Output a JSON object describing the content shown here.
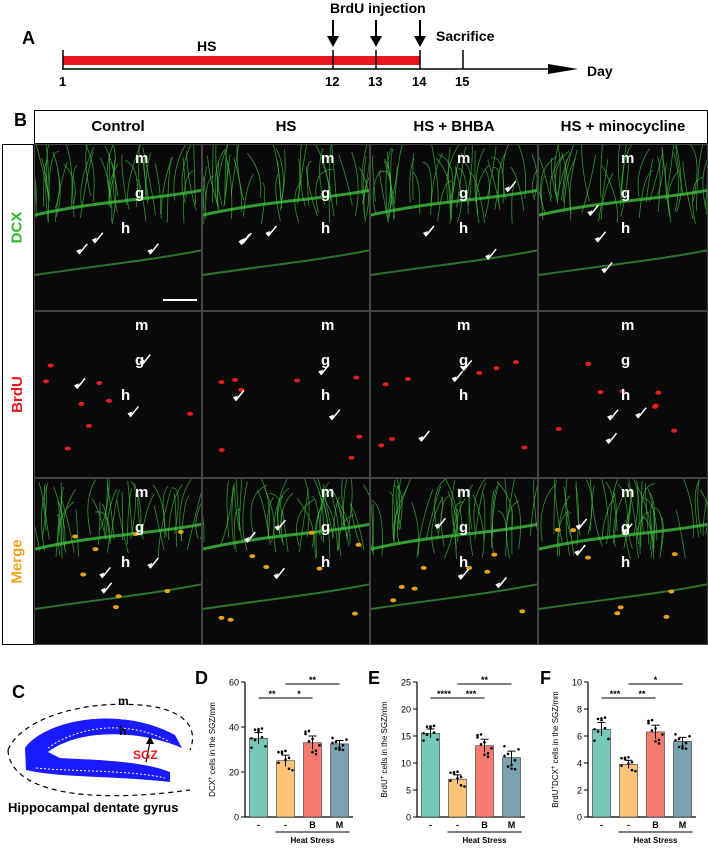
{
  "panel_labels": {
    "a": "A",
    "b": "B",
    "c": "C",
    "d": "D",
    "e": "E",
    "f": "F"
  },
  "timeline": {
    "injection_label": "BrdU injection",
    "hs_label": "HS",
    "sacrifice_label": "Sacrifice",
    "day_label": "Day",
    "ticks": [
      "1",
      "12",
      "13",
      "14",
      "15"
    ],
    "hs_bar_color": "#e8161c"
  },
  "columns": [
    "Control",
    "HS",
    "HS + BHBA",
    "HS + minocycline"
  ],
  "rows": [
    {
      "label": "DCX",
      "color": "#2db52d"
    },
    {
      "label": "BrdU",
      "color": "#e8161c"
    },
    {
      "label": "Merge",
      "color": "#f2a21b"
    }
  ],
  "layer_labels": {
    "m": "m",
    "g": "g",
    "h": "h"
  },
  "schematic": {
    "layer_m": "m",
    "layer_g": "g",
    "layer_h": "h",
    "sgz_label": "SGZ",
    "caption": "Hippocampal dentate gyrus",
    "fill_color": "#1a1aff"
  },
  "chart_data": [
    {
      "type": "bar",
      "panel": "D",
      "ylabel_main": "DCX",
      "ylabel_sup": "+",
      "ylabel_rest": " cells in the SGZ/mm",
      "categories": [
        "-",
        "-",
        "B",
        "M"
      ],
      "values": [
        35,
        25,
        33,
        32.5
      ],
      "errors": [
        2.5,
        2.5,
        3,
        1.5
      ],
      "ylim": [
        0,
        60
      ],
      "yticks": [
        "0",
        "20",
        "40",
        "60"
      ],
      "group_label": "Heat Stress",
      "colors": [
        "#76c8b9",
        "#fcc57a",
        "#f47b6e",
        "#7aa1b0"
      ],
      "significance": [
        {
          "from": 0,
          "to": 1,
          "label": "**",
          "level": 0
        },
        {
          "from": 1,
          "to": 2,
          "label": "*",
          "level": 0
        },
        {
          "from": 1,
          "to": 3,
          "label": "**",
          "level": 1
        }
      ]
    },
    {
      "type": "bar",
      "panel": "E",
      "ylabel_main": "BrdU",
      "ylabel_sup": "+",
      "ylabel_rest": " cells in the SGZ/mm",
      "categories": [
        "-",
        "-",
        "B",
        "M"
      ],
      "values": [
        15.5,
        7,
        13.2,
        11
      ],
      "errors": [
        0.8,
        0.8,
        1.2,
        1.2
      ],
      "ylim": [
        0,
        25
      ],
      "yticks": [
        "0",
        "5",
        "10",
        "15",
        "20",
        "25"
      ],
      "group_label": "Heat Stress",
      "colors": [
        "#76c8b9",
        "#fcc57a",
        "#f47b6e",
        "#7aa1b0"
      ],
      "significance": [
        {
          "from": 0,
          "to": 1,
          "label": "****",
          "level": 0
        },
        {
          "from": 1,
          "to": 2,
          "label": "***",
          "level": 0
        },
        {
          "from": 1,
          "to": 3,
          "label": "**",
          "level": 1
        }
      ]
    },
    {
      "type": "bar",
      "panel": "F",
      "ylabel_main": "BrdU",
      "ylabel_sup": "+",
      "ylabel_rest2": "DCX",
      "ylabel_sup2": "+",
      "ylabel_rest": " cells in the SGZ/mm",
      "categories": [
        "-",
        "-",
        "B",
        "M"
      ],
      "values": [
        6.5,
        3.9,
        6.3,
        5.6
      ],
      "errors": [
        0.5,
        0.3,
        0.5,
        0.3
      ],
      "ylim": [
        0,
        10
      ],
      "yticks": [
        "0",
        "2",
        "4",
        "6",
        "8",
        "10"
      ],
      "group_label": "Heat Stress",
      "colors": [
        "#76c8b9",
        "#fcc57a",
        "#f47b6e",
        "#7aa1b0"
      ],
      "significance": [
        {
          "from": 0,
          "to": 1,
          "label": "***",
          "level": 0
        },
        {
          "from": 1,
          "to": 2,
          "label": "**",
          "level": 0
        },
        {
          "from": 1,
          "to": 3,
          "label": "*",
          "level": 1
        }
      ]
    }
  ]
}
